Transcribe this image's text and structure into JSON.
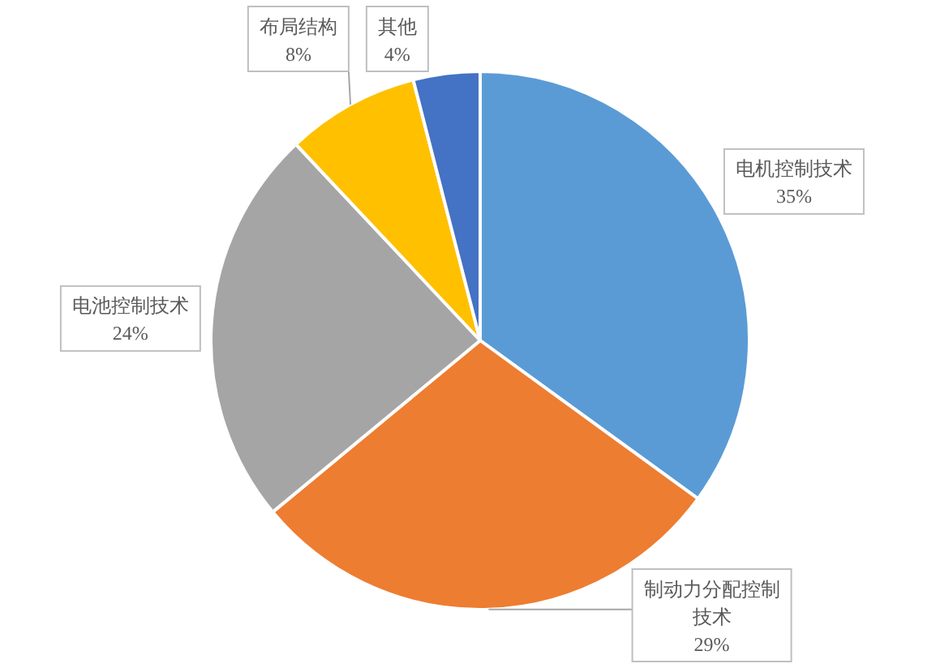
{
  "chart_data": {
    "type": "pie",
    "categories": [
      "电机控制技术",
      "制动力分配控制技术",
      "电池控制技术",
      "布局结构",
      "其他"
    ],
    "values": [
      35,
      29,
      24,
      8,
      4
    ],
    "colors": [
      "#5b9bd5",
      "#ed7d31",
      "#a5a5a5",
      "#ffc000",
      "#4472c4"
    ],
    "value_labels": [
      "35%",
      "29%",
      "24%",
      "8%",
      "4%"
    ]
  }
}
